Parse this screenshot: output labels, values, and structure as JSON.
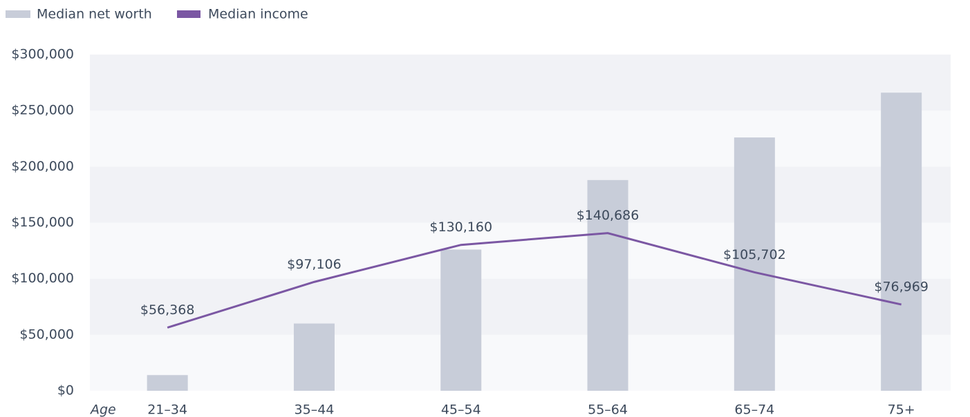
{
  "chart_data": {
    "type": "bar",
    "categories": [
      "21–34",
      "35–44",
      "45–54",
      "55–64",
      "65–74",
      "75+"
    ],
    "x_label": "Age",
    "series": [
      {
        "name": "Median net worth",
        "type": "bar",
        "color": "#c8cdd9",
        "values": [
          14000,
          60000,
          126000,
          188000,
          226000,
          266000
        ]
      },
      {
        "name": "Median income",
        "type": "line",
        "color": "#7b57a3",
        "values": [
          56368,
          97106,
          130160,
          140686,
          105702,
          76969
        ],
        "value_labels": [
          "$56,368",
          "$97,106",
          "$130,160",
          "$140,686",
          "$105,702",
          "$76,969"
        ]
      }
    ],
    "ylim": [
      0,
      300000
    ],
    "yticks": [
      {
        "value": 0,
        "label": "$0"
      },
      {
        "value": 50000,
        "label": "$50,000"
      },
      {
        "value": 100000,
        "label": "$100,000"
      },
      {
        "value": 150000,
        "label": "$150,000"
      },
      {
        "value": 200000,
        "label": "$200,000"
      },
      {
        "value": 250000,
        "label": "$250,000"
      },
      {
        "value": 300000,
        "label": "$300,000"
      }
    ],
    "grid": true
  }
}
